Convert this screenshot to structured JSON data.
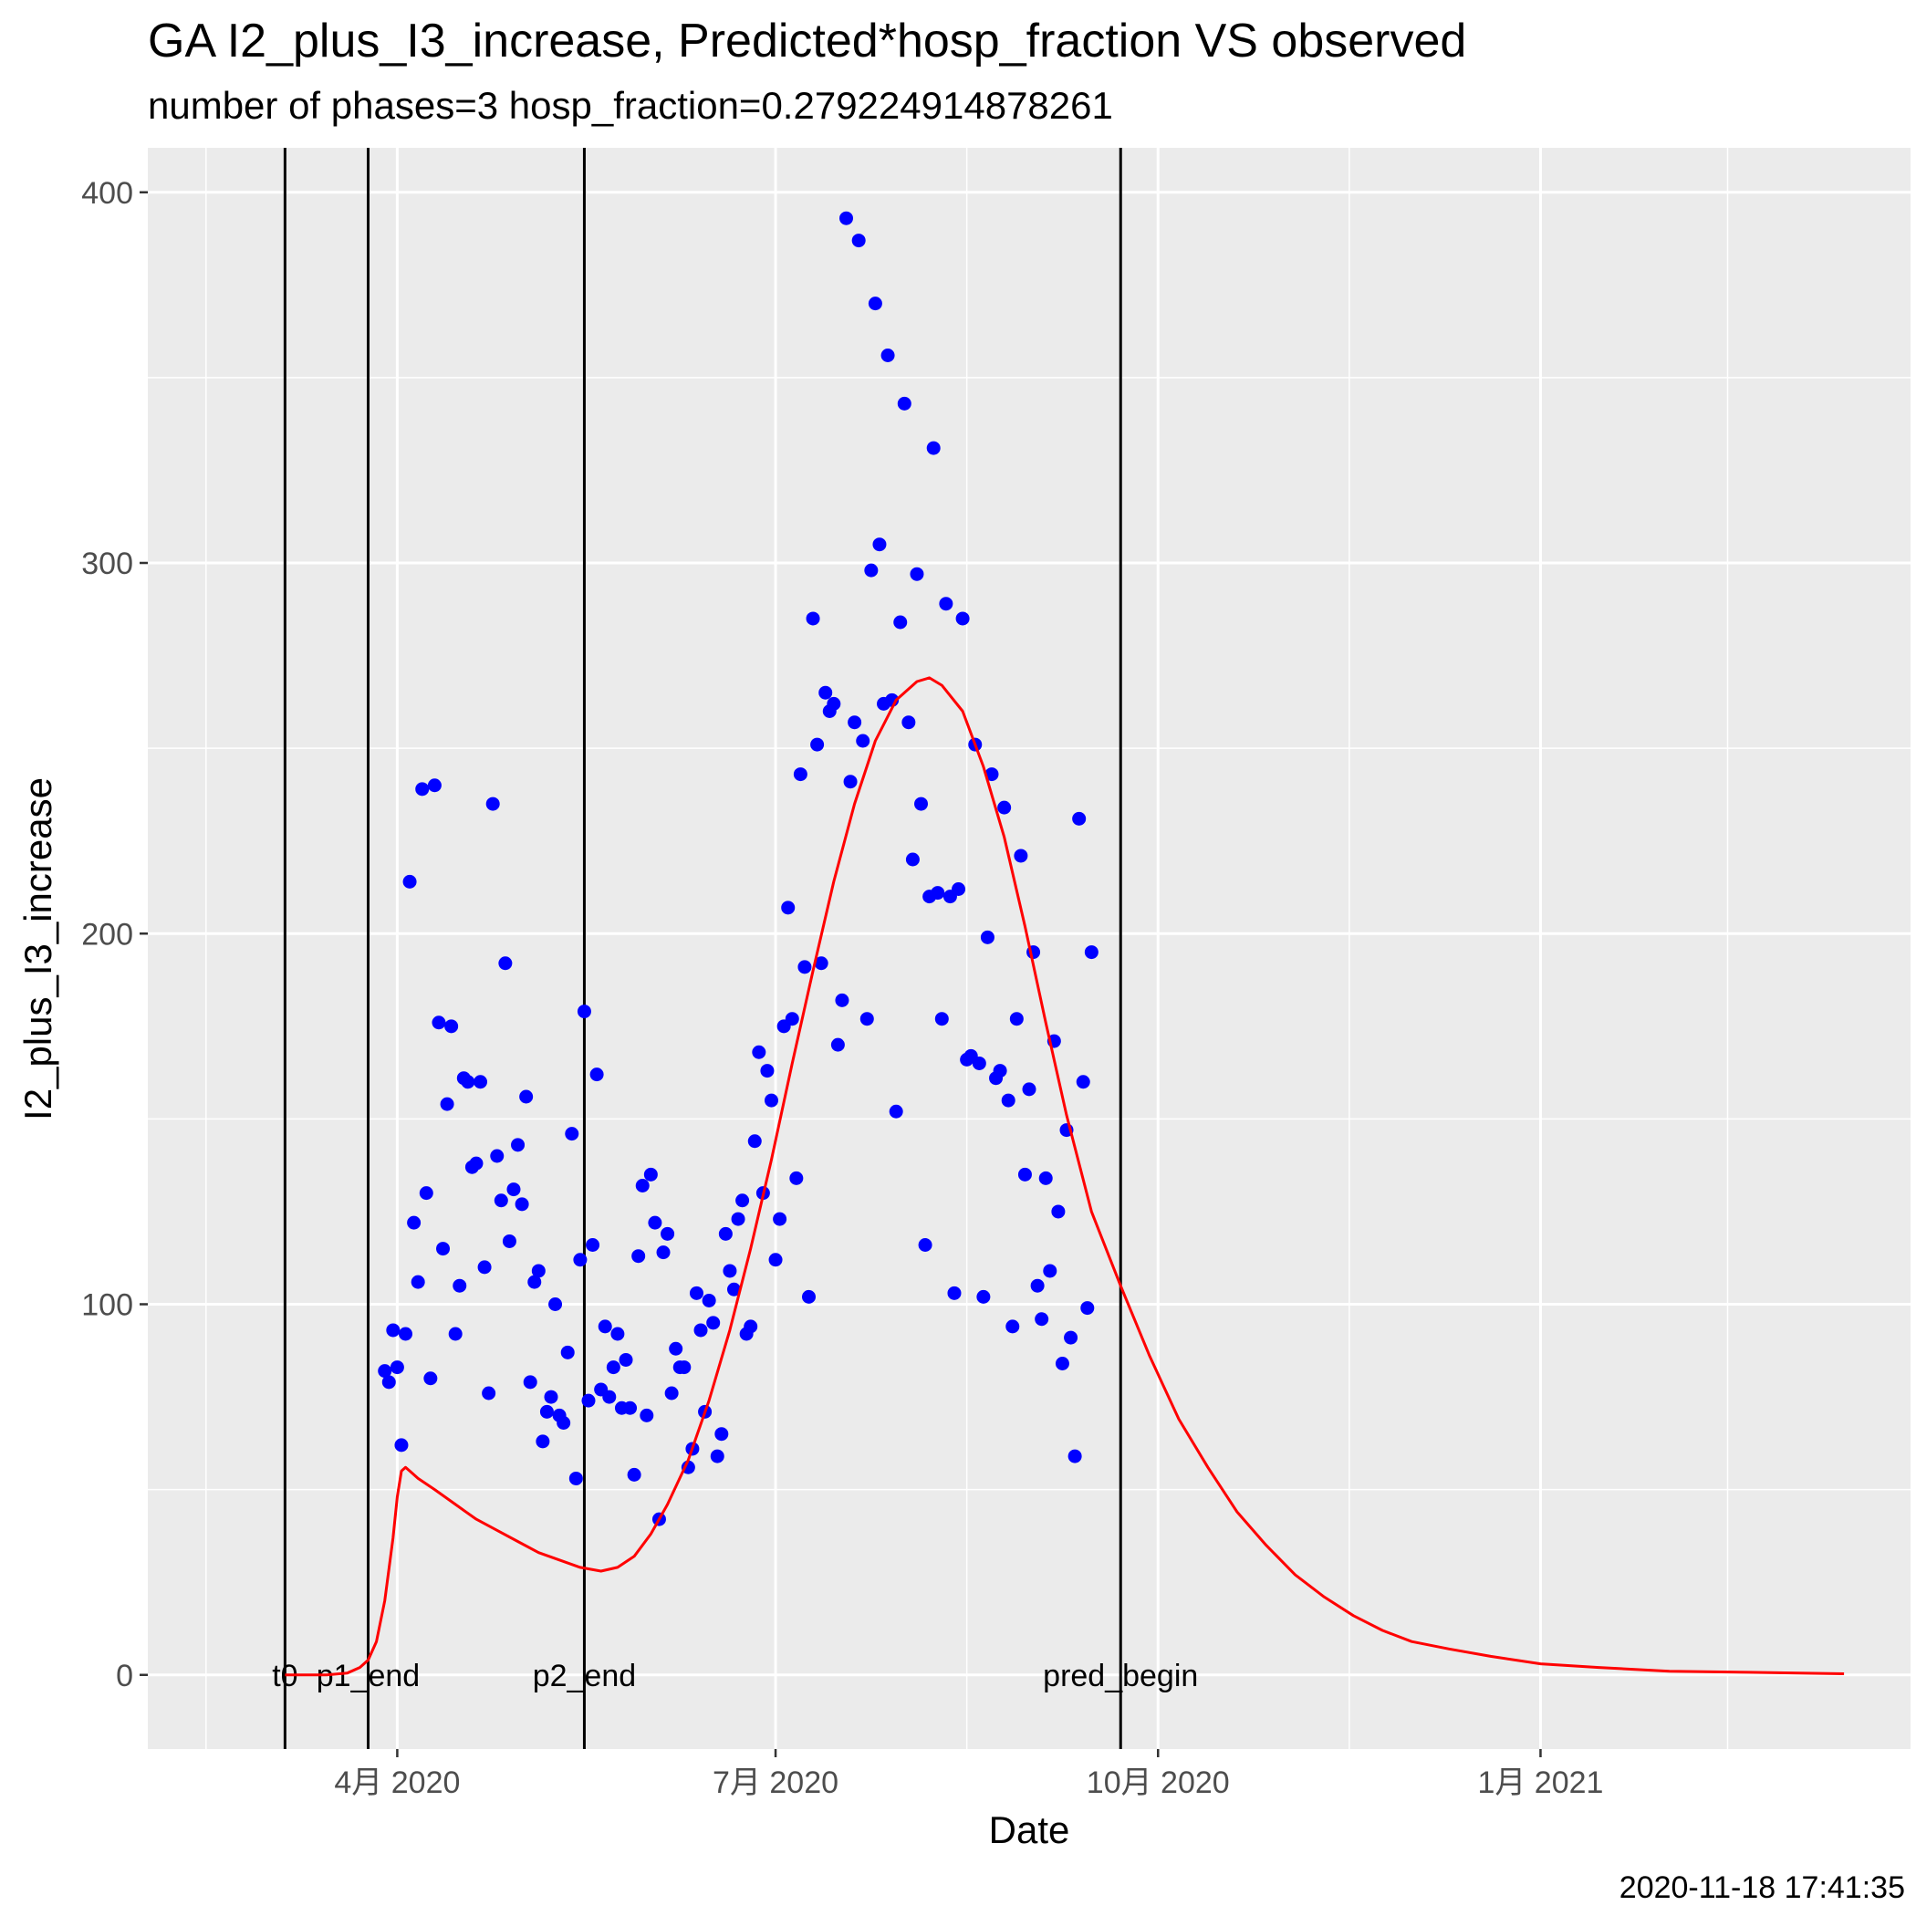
{
  "chart_data": {
    "type": "scatter",
    "title": "GA I2_plus_I3_increase, Predicted*hosp_fraction VS observed",
    "subtitle": "number of phases=3   hosp_fraction=0.279224914878261",
    "xlabel": "Date",
    "ylabel": "I2_plus_I3_increase",
    "caption": "2020-11-18 17:41:35",
    "x_type": "date",
    "xlim": [
      "2020-02-01",
      "2021-03-31"
    ],
    "ylim": [
      -20,
      412
    ],
    "x_ticks": [
      {
        "date": "2020-04-01",
        "label": "4月 2020"
      },
      {
        "date": "2020-07-01",
        "label": "7月 2020"
      },
      {
        "date": "2020-10-01",
        "label": "10月 2020"
      },
      {
        "date": "2021-01-01",
        "label": "1月 2021"
      }
    ],
    "x_minor_ticks": [
      "2020-02-15",
      "2020-05-16",
      "2020-08-16",
      "2020-11-16",
      "2021-02-15"
    ],
    "y_ticks": [
      0,
      100,
      200,
      300,
      400
    ],
    "y_minor_ticks": [
      50,
      150,
      250,
      350
    ],
    "grid": true,
    "colors": {
      "panel": "#ebebeb",
      "grid": "#ffffff",
      "observed": "#0000ff",
      "predicted": "#ff0000",
      "vline": "#000000"
    },
    "vlines": [
      {
        "date": "2020-03-05",
        "label": "t0"
      },
      {
        "date": "2020-03-25",
        "label": "p1_end"
      },
      {
        "date": "2020-05-16",
        "label": "p2_end"
      },
      {
        "date": "2020-09-22",
        "label": "pred_begin"
      }
    ],
    "observed": [
      [
        "2020-03-29",
        82
      ],
      [
        "2020-03-30",
        79
      ],
      [
        "2020-03-31",
        93
      ],
      [
        "2020-04-01",
        83
      ],
      [
        "2020-04-02",
        62
      ],
      [
        "2020-04-03",
        92
      ],
      [
        "2020-04-04",
        214
      ],
      [
        "2020-04-05",
        122
      ],
      [
        "2020-04-06",
        106
      ],
      [
        "2020-04-07",
        239
      ],
      [
        "2020-04-08",
        130
      ],
      [
        "2020-04-09",
        80
      ],
      [
        "2020-04-10",
        240
      ],
      [
        "2020-04-11",
        176
      ],
      [
        "2020-04-12",
        115
      ],
      [
        "2020-04-13",
        154
      ],
      [
        "2020-04-14",
        175
      ],
      [
        "2020-04-15",
        92
      ],
      [
        "2020-04-16",
        105
      ],
      [
        "2020-04-17",
        161
      ],
      [
        "2020-04-18",
        160
      ],
      [
        "2020-04-19",
        137
      ],
      [
        "2020-04-20",
        138
      ],
      [
        "2020-04-21",
        160
      ],
      [
        "2020-04-22",
        110
      ],
      [
        "2020-04-23",
        76
      ],
      [
        "2020-04-24",
        235
      ],
      [
        "2020-04-25",
        140
      ],
      [
        "2020-04-26",
        128
      ],
      [
        "2020-04-27",
        192
      ],
      [
        "2020-04-28",
        117
      ],
      [
        "2020-04-29",
        131
      ],
      [
        "2020-04-30",
        143
      ],
      [
        "2020-05-01",
        127
      ],
      [
        "2020-05-02",
        156
      ],
      [
        "2020-05-03",
        79
      ],
      [
        "2020-05-04",
        106
      ],
      [
        "2020-05-05",
        109
      ],
      [
        "2020-05-06",
        63
      ],
      [
        "2020-05-07",
        71
      ],
      [
        "2020-05-08",
        75
      ],
      [
        "2020-05-09",
        100
      ],
      [
        "2020-05-10",
        70
      ],
      [
        "2020-05-11",
        68
      ],
      [
        "2020-05-12",
        87
      ],
      [
        "2020-05-13",
        146
      ],
      [
        "2020-05-14",
        53
      ],
      [
        "2020-05-15",
        112
      ],
      [
        "2020-05-16",
        179
      ],
      [
        "2020-05-17",
        74
      ],
      [
        "2020-05-18",
        116
      ],
      [
        "2020-05-19",
        162
      ],
      [
        "2020-05-20",
        77
      ],
      [
        "2020-05-21",
        94
      ],
      [
        "2020-05-22",
        75
      ],
      [
        "2020-05-23",
        83
      ],
      [
        "2020-05-24",
        92
      ],
      [
        "2020-05-25",
        72
      ],
      [
        "2020-05-26",
        85
      ],
      [
        "2020-05-27",
        72
      ],
      [
        "2020-05-28",
        54
      ],
      [
        "2020-05-29",
        113
      ],
      [
        "2020-05-30",
        132
      ],
      [
        "2020-05-31",
        70
      ],
      [
        "2020-06-01",
        135
      ],
      [
        "2020-06-02",
        122
      ],
      [
        "2020-06-03",
        42
      ],
      [
        "2020-06-04",
        114
      ],
      [
        "2020-06-05",
        119
      ],
      [
        "2020-06-06",
        76
      ],
      [
        "2020-06-07",
        88
      ],
      [
        "2020-06-08",
        83
      ],
      [
        "2020-06-09",
        83
      ],
      [
        "2020-06-10",
        56
      ],
      [
        "2020-06-11",
        61
      ],
      [
        "2020-06-12",
        103
      ],
      [
        "2020-06-13",
        93
      ],
      [
        "2020-06-14",
        71
      ],
      [
        "2020-06-15",
        101
      ],
      [
        "2020-06-16",
        95
      ],
      [
        "2020-06-17",
        59
      ],
      [
        "2020-06-18",
        65
      ],
      [
        "2020-06-19",
        119
      ],
      [
        "2020-06-20",
        109
      ],
      [
        "2020-06-21",
        104
      ],
      [
        "2020-06-22",
        123
      ],
      [
        "2020-06-23",
        128
      ],
      [
        "2020-06-24",
        92
      ],
      [
        "2020-06-25",
        94
      ],
      [
        "2020-06-26",
        144
      ],
      [
        "2020-06-27",
        168
      ],
      [
        "2020-06-28",
        130
      ],
      [
        "2020-06-29",
        163
      ],
      [
        "2020-06-30",
        155
      ],
      [
        "2020-07-01",
        112
      ],
      [
        "2020-07-02",
        123
      ],
      [
        "2020-07-03",
        175
      ],
      [
        "2020-07-04",
        207
      ],
      [
        "2020-07-05",
        177
      ],
      [
        "2020-07-06",
        134
      ],
      [
        "2020-07-07",
        243
      ],
      [
        "2020-07-08",
        191
      ],
      [
        "2020-07-09",
        102
      ],
      [
        "2020-07-10",
        285
      ],
      [
        "2020-07-11",
        251
      ],
      [
        "2020-07-12",
        192
      ],
      [
        "2020-07-13",
        265
      ],
      [
        "2020-07-14",
        260
      ],
      [
        "2020-07-15",
        262
      ],
      [
        "2020-07-16",
        170
      ],
      [
        "2020-07-17",
        182
      ],
      [
        "2020-07-18",
        393
      ],
      [
        "2020-07-19",
        241
      ],
      [
        "2020-07-20",
        257
      ],
      [
        "2020-07-21",
        387
      ],
      [
        "2020-07-22",
        252
      ],
      [
        "2020-07-23",
        177
      ],
      [
        "2020-07-24",
        298
      ],
      [
        "2020-07-25",
        370
      ],
      [
        "2020-07-26",
        305
      ],
      [
        "2020-07-27",
        262
      ],
      [
        "2020-07-28",
        356
      ],
      [
        "2020-07-29",
        263
      ],
      [
        "2020-07-30",
        152
      ],
      [
        "2020-07-31",
        284
      ],
      [
        "2020-08-01",
        343
      ],
      [
        "2020-08-02",
        257
      ],
      [
        "2020-08-03",
        220
      ],
      [
        "2020-08-04",
        297
      ],
      [
        "2020-08-05",
        235
      ],
      [
        "2020-08-06",
        116
      ],
      [
        "2020-08-07",
        210
      ],
      [
        "2020-08-08",
        331
      ],
      [
        "2020-08-09",
        211
      ],
      [
        "2020-08-10",
        177
      ],
      [
        "2020-08-11",
        289
      ],
      [
        "2020-08-12",
        210
      ],
      [
        "2020-08-13",
        103
      ],
      [
        "2020-08-14",
        212
      ],
      [
        "2020-08-15",
        285
      ],
      [
        "2020-08-16",
        166
      ],
      [
        "2020-08-17",
        167
      ],
      [
        "2020-08-18",
        251
      ],
      [
        "2020-08-19",
        165
      ],
      [
        "2020-08-20",
        102
      ],
      [
        "2020-08-21",
        199
      ],
      [
        "2020-08-22",
        243
      ],
      [
        "2020-08-23",
        161
      ],
      [
        "2020-08-24",
        163
      ],
      [
        "2020-08-25",
        234
      ],
      [
        "2020-08-26",
        155
      ],
      [
        "2020-08-27",
        94
      ],
      [
        "2020-08-28",
        177
      ],
      [
        "2020-08-29",
        221
      ],
      [
        "2020-08-30",
        135
      ],
      [
        "2020-08-31",
        158
      ],
      [
        "2020-09-01",
        195
      ],
      [
        "2020-09-02",
        105
      ],
      [
        "2020-09-03",
        96
      ],
      [
        "2020-09-04",
        134
      ],
      [
        "2020-09-05",
        109
      ],
      [
        "2020-09-06",
        171
      ],
      [
        "2020-09-07",
        125
      ],
      [
        "2020-09-08",
        84
      ],
      [
        "2020-09-09",
        147
      ],
      [
        "2020-09-10",
        91
      ],
      [
        "2020-09-11",
        59
      ],
      [
        "2020-09-12",
        231
      ],
      [
        "2020-09-13",
        160
      ],
      [
        "2020-09-14",
        99
      ],
      [
        "2020-09-15",
        195
      ]
    ],
    "predicted": [
      [
        "2020-03-05",
        0
      ],
      [
        "2020-03-10",
        0
      ],
      [
        "2020-03-15",
        0
      ],
      [
        "2020-03-20",
        0.5
      ],
      [
        "2020-03-23",
        2
      ],
      [
        "2020-03-25",
        4
      ],
      [
        "2020-03-27",
        9
      ],
      [
        "2020-03-29",
        20
      ],
      [
        "2020-03-31",
        37
      ],
      [
        "2020-04-01",
        48
      ],
      [
        "2020-04-02",
        55
      ],
      [
        "2020-04-03",
        56
      ],
      [
        "2020-04-04",
        55
      ],
      [
        "2020-04-06",
        53
      ],
      [
        "2020-04-10",
        50
      ],
      [
        "2020-04-15",
        46
      ],
      [
        "2020-04-20",
        42
      ],
      [
        "2020-04-25",
        39
      ],
      [
        "2020-04-30",
        36
      ],
      [
        "2020-05-05",
        33
      ],
      [
        "2020-05-10",
        31
      ],
      [
        "2020-05-15",
        29
      ],
      [
        "2020-05-20",
        28
      ],
      [
        "2020-05-24",
        29
      ],
      [
        "2020-05-28",
        32
      ],
      [
        "2020-06-01",
        38
      ],
      [
        "2020-06-05",
        46
      ],
      [
        "2020-06-10",
        58
      ],
      [
        "2020-06-15",
        74
      ],
      [
        "2020-06-20",
        93
      ],
      [
        "2020-06-25",
        115
      ],
      [
        "2020-06-30",
        139
      ],
      [
        "2020-07-05",
        165
      ],
      [
        "2020-07-10",
        190
      ],
      [
        "2020-07-15",
        214
      ],
      [
        "2020-07-20",
        235
      ],
      [
        "2020-07-25",
        252
      ],
      [
        "2020-07-30",
        263
      ],
      [
        "2020-08-04",
        268
      ],
      [
        "2020-08-07",
        269
      ],
      [
        "2020-08-10",
        267
      ],
      [
        "2020-08-15",
        260
      ],
      [
        "2020-08-20",
        245
      ],
      [
        "2020-08-25",
        226
      ],
      [
        "2020-08-30",
        202
      ],
      [
        "2020-09-04",
        176
      ],
      [
        "2020-09-09",
        151
      ],
      [
        "2020-09-15",
        125
      ],
      [
        "2020-09-22",
        105
      ],
      [
        "2020-09-29",
        86
      ],
      [
        "2020-10-06",
        69
      ],
      [
        "2020-10-13",
        56
      ],
      [
        "2020-10-20",
        44
      ],
      [
        "2020-10-27",
        35
      ],
      [
        "2020-11-03",
        27
      ],
      [
        "2020-11-10",
        21
      ],
      [
        "2020-11-17",
        16
      ],
      [
        "2020-11-24",
        12
      ],
      [
        "2020-12-01",
        9
      ],
      [
        "2020-12-10",
        7
      ],
      [
        "2020-12-20",
        5
      ],
      [
        "2021-01-01",
        3
      ],
      [
        "2021-01-15",
        2
      ],
      [
        "2021-02-01",
        1
      ],
      [
        "2021-02-20",
        0.7
      ],
      [
        "2021-03-15",
        0.3
      ]
    ]
  }
}
